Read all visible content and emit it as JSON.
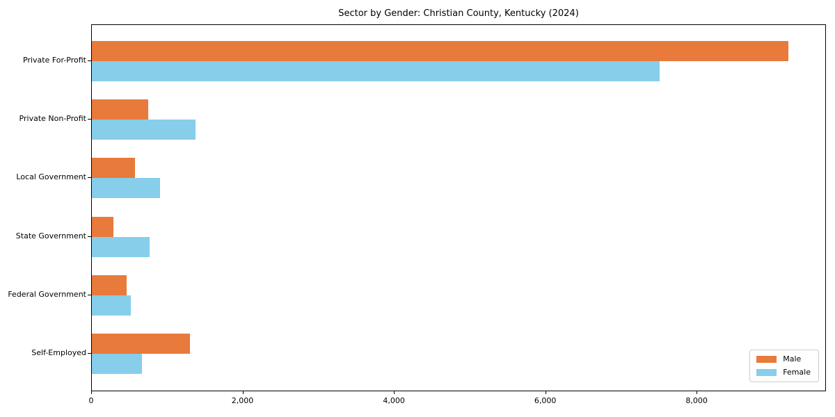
{
  "figure": {
    "background": "#ffffff"
  },
  "chart_data": {
    "type": "bar",
    "orientation": "horizontal",
    "title": "Sector by Gender: Christian County, Kentucky (2024)",
    "categories": [
      "Private For-Profit",
      "Private Non-Profit",
      "Local Government",
      "State Government",
      "Federal Government",
      "Self-Employed"
    ],
    "series": [
      {
        "name": "Male",
        "color": "#e87a3c",
        "values": [
          9200,
          740,
          570,
          285,
          460,
          1300
        ]
      },
      {
        "name": "Female",
        "color": "#87ceeb",
        "values": [
          7500,
          1370,
          900,
          760,
          510,
          660
        ]
      }
    ],
    "xlabel": "",
    "ylabel": "",
    "xlim": [
      0,
      9690
    ],
    "xticks": [
      0,
      2000,
      4000,
      6000,
      8000
    ],
    "xtick_labels": [
      "0",
      "2,000",
      "4,000",
      "6,000",
      "8,000"
    ],
    "grid": false,
    "legend_position": "lower right",
    "spine_color": "#000000",
    "legend_border_color": "#cccccc"
  }
}
